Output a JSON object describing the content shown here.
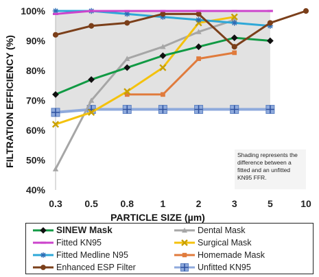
{
  "chart_data": {
    "type": "line",
    "title": "",
    "xlabel": "PARTICLE SIZE (µm)",
    "ylabel": "FILTRATION EFFICIENCY (%)",
    "x": [
      0.3,
      0.5,
      0.8,
      1,
      2,
      3,
      5,
      10
    ],
    "x_tick_labels": [
      "0.3",
      "0.5",
      "0.8",
      "1",
      "2",
      "3",
      "5",
      "10"
    ],
    "x_scale": "log",
    "ylim": [
      40,
      100
    ],
    "y_ticks": [
      40,
      50,
      60,
      70,
      80,
      90,
      100
    ],
    "y_tick_labels": [
      "40%",
      "50%",
      "60%",
      "70%",
      "80%",
      "90%",
      "100%"
    ],
    "grid": false,
    "legend_position": "bottom",
    "shaded_region": {
      "between": [
        "Fitted KN95",
        "Unfitted KN95"
      ],
      "color": "#e2e2e2"
    },
    "annotation": "Shading represents the difference between a fitted and an unfitted KN95 FFR.",
    "series": [
      {
        "name": "SINEW Mask",
        "color": "#0a8a3a",
        "marker": "diamond",
        "bold": true,
        "x": [
          0.3,
          0.5,
          0.8,
          1,
          2,
          3,
          5
        ],
        "values": [
          72,
          77,
          81,
          85,
          88,
          91,
          90
        ]
      },
      {
        "name": "Dental Mask",
        "color": "#a6a6a6",
        "marker": "triangle",
        "bold": false,
        "x": [
          0.3,
          0.5,
          0.8,
          1,
          2,
          3
        ],
        "values": [
          47,
          70,
          84,
          88,
          93,
          97
        ]
      },
      {
        "name": "Fitted KN95",
        "color": "#cc44cc",
        "marker": "dash",
        "bold": false,
        "x": [
          0.3,
          0.5,
          0.8,
          1,
          2,
          3,
          5
        ],
        "values": [
          99,
          100,
          100,
          100,
          100,
          100,
          100
        ]
      },
      {
        "name": "Surgical Mask",
        "color": "#f4c20d",
        "marker": "x",
        "bold": false,
        "x": [
          0.3,
          0.5,
          0.8,
          1,
          2,
          3
        ],
        "values": [
          62,
          66,
          73,
          81,
          96,
          98
        ]
      },
      {
        "name": "Fitted Medline N95",
        "color": "#2ea8d8",
        "marker": "star",
        "bold": false,
        "x": [
          0.3,
          0.5,
          0.8,
          1,
          2,
          3,
          5
        ],
        "values": [
          100,
          100,
          99,
          98,
          97,
          96,
          95
        ]
      },
      {
        "name": "Homemade Mask",
        "color": "#e07b3c",
        "marker": "square",
        "bold": false,
        "x": [
          0.8,
          1,
          2,
          3
        ],
        "values": [
          72,
          72,
          84,
          86
        ]
      },
      {
        "name": "Enhanced ESP Filter",
        "color": "#7b3f1a",
        "marker": "circle",
        "bold": false,
        "x": [
          0.3,
          0.5,
          0.8,
          1,
          2,
          3,
          5,
          10
        ],
        "values": [
          92,
          95,
          96,
          99,
          99,
          88,
          96,
          100
        ]
      },
      {
        "name": "Unfitted KN95",
        "color": "#8faadc",
        "marker": "plus",
        "bold": false,
        "x": [
          0.3,
          0.5,
          0.8,
          1,
          2,
          3,
          5
        ],
        "values": [
          66,
          67,
          67,
          67,
          67,
          67,
          67
        ]
      }
    ]
  }
}
